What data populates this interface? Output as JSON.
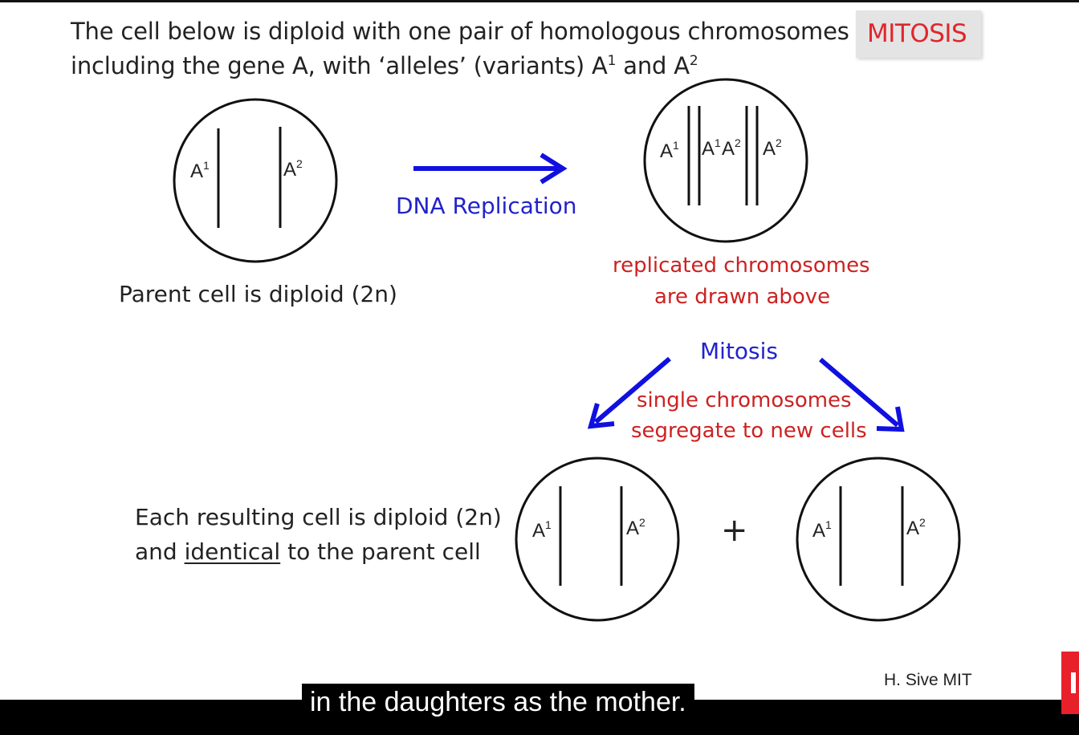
{
  "intro": {
    "line1": "The cell below is diploid with one pair of homologous chromosomes",
    "line2_prefix": "including the gene A, with ‘alleles’ (variants) A",
    "sup1": "1",
    "and": " and A",
    "sup2": "2"
  },
  "badge": "MITOSIS",
  "alleles": {
    "base": "A",
    "one": "1",
    "two": "2"
  },
  "labels": {
    "dna_replication": "DNA Replication",
    "parent_cell": "Parent cell is diploid (2n)",
    "replicated_1": "replicated chromosomes",
    "replicated_2": "are drawn above",
    "mitosis": "Mitosis",
    "segregate_1": "single chromosomes",
    "segregate_2": "segregate to new cells",
    "result_1": "Each resulting cell is diploid (2n)",
    "result_2_pre": "and ",
    "result_2_u": "identical",
    "result_2_post": " to the parent cell",
    "plus": "+"
  },
  "credit": "H. Sive MIT",
  "caption": "in the daughters as the mother.",
  "colors": {
    "red": "#cc2222",
    "blue": "#2222cc",
    "arrow": "#1010e0"
  }
}
